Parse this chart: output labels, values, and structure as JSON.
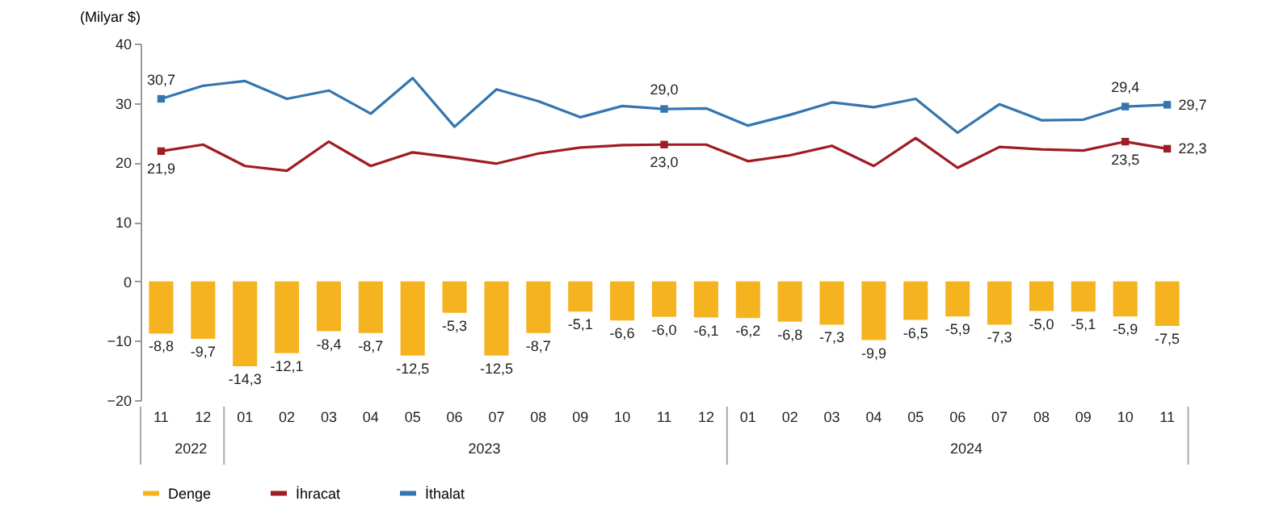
{
  "chart_data": {
    "type": "bar",
    "ylabel": "(Milyar $)",
    "categories": [
      "11",
      "12",
      "01",
      "02",
      "03",
      "04",
      "05",
      "06",
      "07",
      "08",
      "09",
      "10",
      "11",
      "12",
      "01",
      "02",
      "03",
      "04",
      "05",
      "06",
      "07",
      "08",
      "09",
      "10",
      "11"
    ],
    "annotations": [
      "2022",
      "2023",
      "2024"
    ],
    "series": [
      {
        "name": "Denge",
        "color": "#f5b320",
        "values": [
          -8.8,
          -9.7,
          -14.3,
          -12.1,
          -8.4,
          -8.7,
          -12.5,
          -5.3,
          -12.5,
          -8.7,
          -5.1,
          -6.6,
          -6.0,
          -6.1,
          -6.2,
          -6.8,
          -7.3,
          -9.9,
          -6.5,
          -5.9,
          -7.3,
          -5.0,
          -5.1,
          -5.9,
          -7.5
        ],
        "value_labels": [
          "-8,8",
          "-9,7",
          "-14,3",
          "-12,1",
          "-8,4",
          "-8,7",
          "-12,5",
          "-5,3",
          "-12,5",
          "-8,7",
          "-5,1",
          "-6,6",
          "-6,0",
          "-6,1",
          "-6,2",
          "-6,8",
          "-7,3",
          "-9,9",
          "-6,5",
          "-5,9",
          "-7,3",
          "-5,0",
          "-5,1",
          "-5,9",
          "-7,5"
        ]
      },
      {
        "name": "İhracat",
        "type": "line",
        "color": "#a01c24",
        "values": [
          21.9,
          23.0,
          19.4,
          18.6,
          23.5,
          19.4,
          21.7,
          20.8,
          19.8,
          21.5,
          22.5,
          22.9,
          23.0,
          23.0,
          20.2,
          21.2,
          22.8,
          19.4,
          24.1,
          19.1,
          22.6,
          22.2,
          22.0,
          23.5,
          22.3
        ],
        "value_labels": [
          "21,9",
          null,
          null,
          null,
          null,
          null,
          null,
          null,
          null,
          null,
          null,
          null,
          "23,0",
          null,
          null,
          null,
          null,
          null,
          null,
          null,
          null,
          null,
          null,
          "23,5",
          "22,3"
        ]
      },
      {
        "name": "İthalat",
        "type": "line",
        "color": "#3476b0",
        "values": [
          30.7,
          32.9,
          33.7,
          30.7,
          32.1,
          28.2,
          34.2,
          26.0,
          32.3,
          30.3,
          27.6,
          29.5,
          29.0,
          29.1,
          26.2,
          28.0,
          30.1,
          29.3,
          30.7,
          25.0,
          29.8,
          27.1,
          27.2,
          29.4,
          29.7
        ],
        "value_labels": [
          "30,7",
          null,
          null,
          null,
          null,
          null,
          null,
          null,
          null,
          null,
          null,
          null,
          "29,0",
          null,
          null,
          null,
          null,
          null,
          null,
          null,
          null,
          null,
          null,
          "29,4",
          "29,7"
        ]
      }
    ],
    "ylim": [
      -20,
      40
    ],
    "yticks": [
      -20,
      -10,
      0,
      10,
      20,
      30,
      40
    ],
    "grid": false,
    "legend": "bottom"
  }
}
